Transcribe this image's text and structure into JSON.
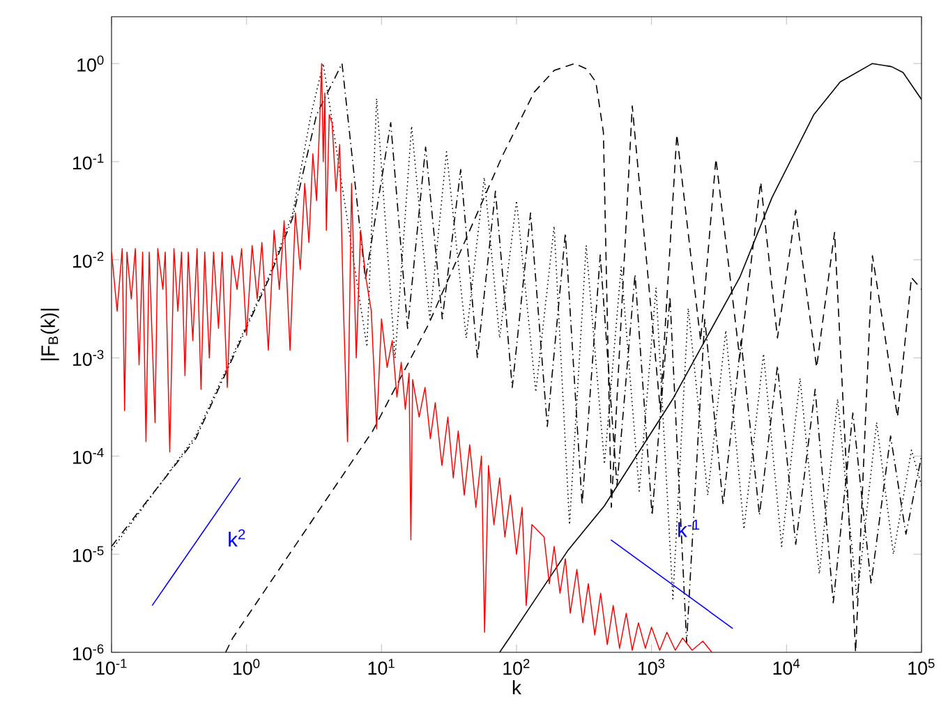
{
  "chart_data": {
    "type": "line",
    "xlabel": "k",
    "ylabel": "|F$_{B}$(k)|",
    "log": "xy",
    "xlim": [
      0.1,
      100000
    ],
    "ylim": [
      1e-06,
      3
    ],
    "xticks": [
      {
        "value": 0.1,
        "label": "10$^{-1}$"
      },
      {
        "value": 1,
        "label": "10$^{0}$"
      },
      {
        "value": 10,
        "label": "10$^{1}$"
      },
      {
        "value": 100,
        "label": "10$^{2}$"
      },
      {
        "value": 1000,
        "label": "10$^{3}$"
      },
      {
        "value": 10000,
        "label": "10$^{4}$"
      },
      {
        "value": 100000,
        "label": "10$^{5}$"
      }
    ],
    "yticks": [
      {
        "value": 1e-06,
        "label": "10$^{-6}$"
      },
      {
        "value": 1e-05,
        "label": "10$^{-5}$"
      },
      {
        "value": 0.0001,
        "label": "10$^{-4}$"
      },
      {
        "value": 0.001,
        "label": "10$^{-3}$"
      },
      {
        "value": 0.01,
        "label": "10$^{-2}$"
      },
      {
        "value": 0.1,
        "label": "10$^{-1}$"
      },
      {
        "value": 1,
        "label": "10$^{0}$"
      }
    ],
    "annotations": [
      "k$^{2}$",
      "k$^{-1}$"
    ],
    "series": [
      {
        "color": "#000000",
        "line_style": "dotted",
        "x": [
          0.1,
          0.42,
          1.48,
          2.2,
          3.0,
          3.7,
          7.8,
          9.2,
          12.6,
          16.7,
          22.8,
          30.3,
          42.4,
          57.7,
          75,
          100,
          139,
          190,
          247,
          328,
          448,
          596,
          811,
          1080,
          1440,
          1870,
          2610,
          3550,
          4840,
          6760,
          9200,
          12600,
          17500,
          23900,
          33300,
          46500,
          61900,
          84300,
          100000
        ],
        "values": [
          1.1e-05,
          0.00016,
          0.007,
          0.03,
          0.3,
          1.0,
          0.0013,
          0.44,
          0.001,
          0.23,
          0.0025,
          0.126,
          0.0016,
          0.069,
          0.0016,
          0.04,
          0.00045,
          0.022,
          2e-05,
          0.014,
          8.3e-05,
          0.0085,
          4.4e-05,
          0.0052,
          3.5e-06,
          0.0032,
          4e-05,
          0.0019,
          1.8e-05,
          0.0011,
          1.2e-05,
          0.00062,
          6.3e-06,
          0.00038,
          3.5e-06,
          0.00022,
          1e-05,
          0.000115,
          5e-05
        ]
      },
      {
        "color": "#000000",
        "line_style": "dashdot",
        "x": [
          0.1,
          0.42,
          1.48,
          2.2,
          3.3,
          5.1,
          7.6,
          11.7,
          15.6,
          21.2,
          28.2,
          38.6,
          51.3,
          69.8,
          93,
          127,
          169,
          230,
          306,
          417,
          555,
          755,
          1010,
          1370,
          1820,
          2480,
          3390,
          4610,
          6300,
          8570,
          11700,
          16300,
          22200,
          31000,
          42300,
          59000,
          76700,
          100000
        ],
        "values": [
          1.2e-05,
          0.00015,
          0.0066,
          0.027,
          0.3,
          1.0,
          0.0063,
          0.25,
          0.002,
          0.141,
          0.0025,
          0.083,
          0.001,
          0.05,
          0.0005,
          0.03,
          0.0002,
          0.0186,
          3.2e-05,
          0.0112,
          5e-05,
          0.0071,
          2.5e-05,
          0.0042,
          1.26e-06,
          0.0025,
          3.2e-05,
          0.0015,
          2.5e-05,
          0.00083,
          1.26e-05,
          0.00048,
          3.2e-06,
          0.000275,
          5e-06,
          0.00016,
          1.6e-05,
          0.0001
        ]
      },
      {
        "color": "#000000",
        "line_style": "dashed",
        "x": [
          0.7,
          0.79,
          8.6,
          22.3,
          78.7,
          135,
          190,
          270,
          330,
          387,
          440,
          504,
          720,
          1160,
          1540,
          2310,
          3000,
          4500,
          6440,
          8570,
          11700,
          16700,
          22700,
          32500,
          43300,
          66400,
          84200,
          100000
        ],
        "values": [
          1e-06,
          1.4e-06,
          0.00018,
          0.0022,
          0.115,
          0.51,
          0.85,
          1.0,
          0.88,
          0.65,
          0.2,
          3e-05,
          0.37,
          0.0003,
          0.19,
          0.0015,
          0.107,
          0.001,
          0.062,
          0.0016,
          0.032,
          0.0008,
          0.019,
          1e-06,
          0.011,
          0.00025,
          0.0066,
          0.005
        ]
      },
      {
        "color": "#000000",
        "line_style": "solid",
        "x": [
          75,
          88.5,
          241,
          447,
          1435,
          4500,
          7800,
          15900,
          25000,
          43300,
          60000,
          73000,
          100000
        ],
        "values": [
          1e-06,
          1.4e-06,
          1.1e-05,
          3.1e-05,
          0.00038,
          0.0066,
          0.043,
          0.3,
          0.65,
          1.0,
          0.93,
          0.81,
          0.43
        ]
      },
      {
        "color": "#ff0000",
        "line_style": "solid",
        "x": [
          0.1,
          0.11,
          0.12,
          0.125,
          0.13,
          0.14,
          0.15,
          0.16,
          0.17,
          0.18,
          0.19,
          0.21,
          0.22,
          0.24,
          0.25,
          0.27,
          0.29,
          0.31,
          0.33,
          0.35,
          0.37,
          0.4,
          0.43,
          0.46,
          0.49,
          0.53,
          0.57,
          0.62,
          0.66,
          0.72,
          0.78,
          0.85,
          0.92,
          1.0,
          1.1,
          1.2,
          1.3,
          1.45,
          1.6,
          1.75,
          1.9,
          2.1,
          2.3,
          2.5,
          2.7,
          2.9,
          3.1,
          3.3,
          3.5,
          3.6,
          3.7,
          3.8,
          3.9,
          4.1,
          4.3,
          4.6,
          4.9,
          5.2,
          5.6,
          6.0,
          6.5,
          7.0,
          7.6,
          8.4,
          9.2,
          10,
          11,
          12,
          13,
          14,
          15,
          16,
          16.5,
          17,
          19,
          21,
          23,
          25,
          28,
          31,
          34,
          37,
          41,
          45,
          50,
          55,
          58,
          62,
          68,
          75,
          82,
          90,
          100,
          110,
          118,
          130,
          160,
          175,
          190,
          210,
          230,
          250,
          280,
          310,
          340,
          380,
          420,
          470,
          520,
          580,
          650,
          720,
          800,
          900,
          1000,
          1150,
          1300,
          1500,
          1700,
          2000,
          2400,
          2800
        ],
        "values": [
          0.012,
          0.003,
          0.013,
          0.00029,
          0.012,
          0.004,
          0.013,
          0.00085,
          0.012,
          0.00014,
          0.012,
          0.00022,
          0.013,
          0.005,
          0.012,
          0.00011,
          0.013,
          0.003,
          0.012,
          0.00066,
          0.012,
          0.0015,
          0.013,
          0.00048,
          0.012,
          0.001,
          0.012,
          0.002,
          0.012,
          0.0005,
          0.011,
          0.005,
          0.013,
          0.0017,
          0.014,
          0.004,
          0.015,
          0.0012,
          0.02,
          0.005,
          0.025,
          0.0012,
          0.03,
          0.008,
          0.06,
          0.015,
          0.12,
          0.04,
          0.3,
          1.0,
          0.1,
          0.5,
          0.02,
          0.3,
          0.25,
          0.05,
          0.15,
          0.004,
          0.00014,
          0.06,
          0.001,
          0.02,
          0.007,
          0.003,
          0.00019,
          0.0025,
          0.0008,
          0.0015,
          0.0004,
          0.0009,
          0.0003,
          0.0007,
          1.4e-05,
          0.0006,
          0.00025,
          0.0005,
          0.00015,
          0.00035,
          8e-05,
          0.00025,
          6e-05,
          0.00018,
          4e-05,
          0.00013,
          3e-05,
          0.0001,
          1.6e-06,
          8e-05,
          2e-05,
          6e-05,
          1.5e-05,
          4e-05,
          1e-05,
          3e-05,
          3e-06,
          2e-05,
          1.5e-05,
          5e-06,
          1.2e-05,
          4e-06,
          9e-06,
          2.5e-06,
          7e-06,
          2e-06,
          5e-06,
          1.5e-06,
          4e-06,
          1.2e-06,
          3e-06,
          1.1e-06,
          2.5e-06,
          1.05e-06,
          2e-06,
          1.1e-06,
          1.8e-06,
          1.05e-06,
          1.6e-06,
          1.05e-06,
          1.4e-06,
          1.05e-06,
          1.3e-06,
          1e-06
        ]
      },
      {
        "color": "#0000ff",
        "line_style": "solid",
        "x": [
          0.2,
          0.9
        ],
        "values": [
          3e-06,
          6e-05
        ]
      },
      {
        "color": "#0000ff",
        "line_style": "solid",
        "x": [
          500,
          4000
        ],
        "values": [
          1.4e-05,
          1.75e-06
        ]
      }
    ]
  }
}
